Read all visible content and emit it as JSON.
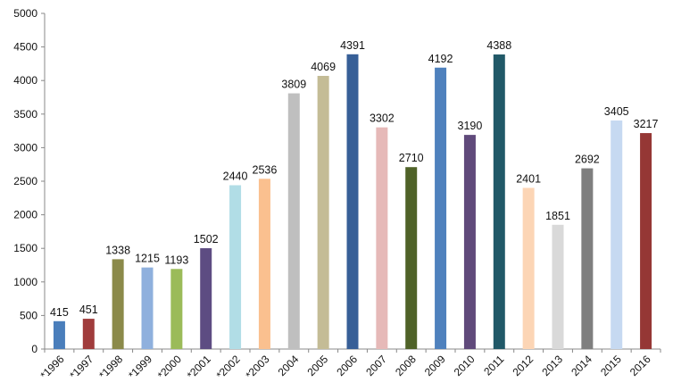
{
  "chart_data": {
    "type": "bar",
    "title": "",
    "xlabel": "",
    "ylabel": "",
    "ylim": [
      0,
      5000
    ],
    "yticks": [
      0,
      500,
      1000,
      1500,
      2000,
      2500,
      3000,
      3500,
      4000,
      4500,
      5000
    ],
    "grid": false,
    "legend": "none",
    "categories": [
      "*1996",
      "*1997",
      "*1998",
      "*1999",
      "*2000",
      "*2001",
      "*2002",
      "*2003",
      "2004",
      "2005",
      "2006",
      "2007",
      "2008",
      "2009",
      "2010",
      "2011",
      "2012",
      "2013",
      "2014",
      "2015",
      "2016"
    ],
    "values": [
      415,
      451,
      1338,
      1215,
      1193,
      1502,
      2440,
      2536,
      3809,
      4069,
      4391,
      3302,
      2710,
      4192,
      3190,
      4388,
      2401,
      1851,
      2692,
      3405,
      3217
    ],
    "colors": [
      "#4a7ebb",
      "#a03c3c",
      "#8b8a4a",
      "#8fb0dd",
      "#9bbb59",
      "#5d4c82",
      "#b1dde6",
      "#fac08f",
      "#bfbfbf",
      "#c4bc96",
      "#375f97",
      "#e6b9b8",
      "#4f6228",
      "#4f81bd",
      "#604a7b",
      "#215968",
      "#fcd5b5",
      "#d9d9d9",
      "#7f7f7f",
      "#c6d9f1",
      "#953735"
    ]
  }
}
